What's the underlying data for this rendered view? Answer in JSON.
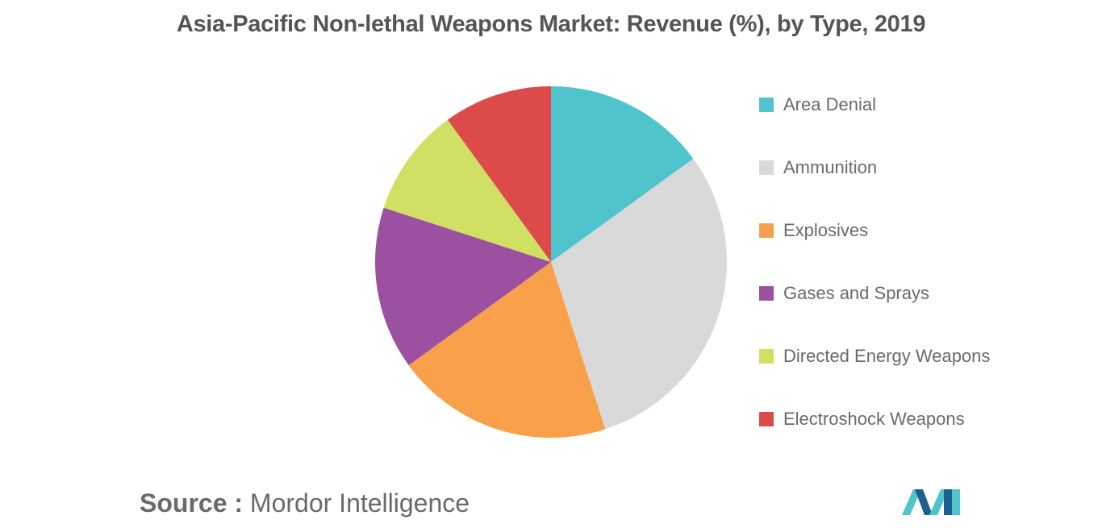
{
  "chart_data": {
    "type": "pie",
    "title": "Asia-Pacific Non-lethal Weapons Market: Revenue (%), by Type, 2019",
    "categories": [
      "Area Denial",
      "Ammunition",
      "Explosives",
      "Gases and Sprays",
      "Directed Energy Weapons",
      "Electroshock Weapons"
    ],
    "values": [
      15,
      30,
      20,
      15,
      10,
      10
    ],
    "colors": [
      "#4fc4cc",
      "#d9d9d9",
      "#f9a04b",
      "#9b51a0",
      "#cfe063",
      "#dd4a4a"
    ],
    "legend_position": "right"
  },
  "source": {
    "label": "Source :",
    "value": "Mordor Intelligence"
  },
  "logo": {
    "icon": "mordor-intelligence-logo",
    "colors": [
      "#1b5f8f",
      "#4fc4cc"
    ]
  }
}
